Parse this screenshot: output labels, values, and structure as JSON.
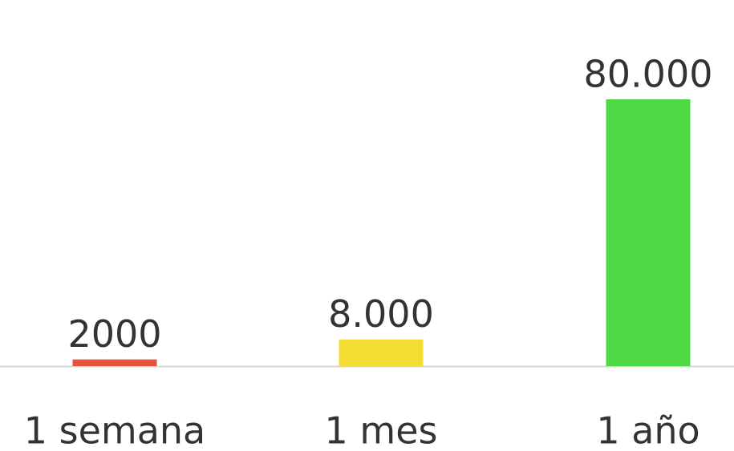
{
  "chart_data": {
    "type": "bar",
    "categories": [
      "1 semana",
      "1 mes",
      "1 año"
    ],
    "values": [
      2000,
      8000,
      80000
    ],
    "value_labels": [
      "2000",
      "8.000",
      "80.000"
    ],
    "colors": [
      "#e5533d",
      "#f4dd33",
      "#4dd844"
    ]
  }
}
